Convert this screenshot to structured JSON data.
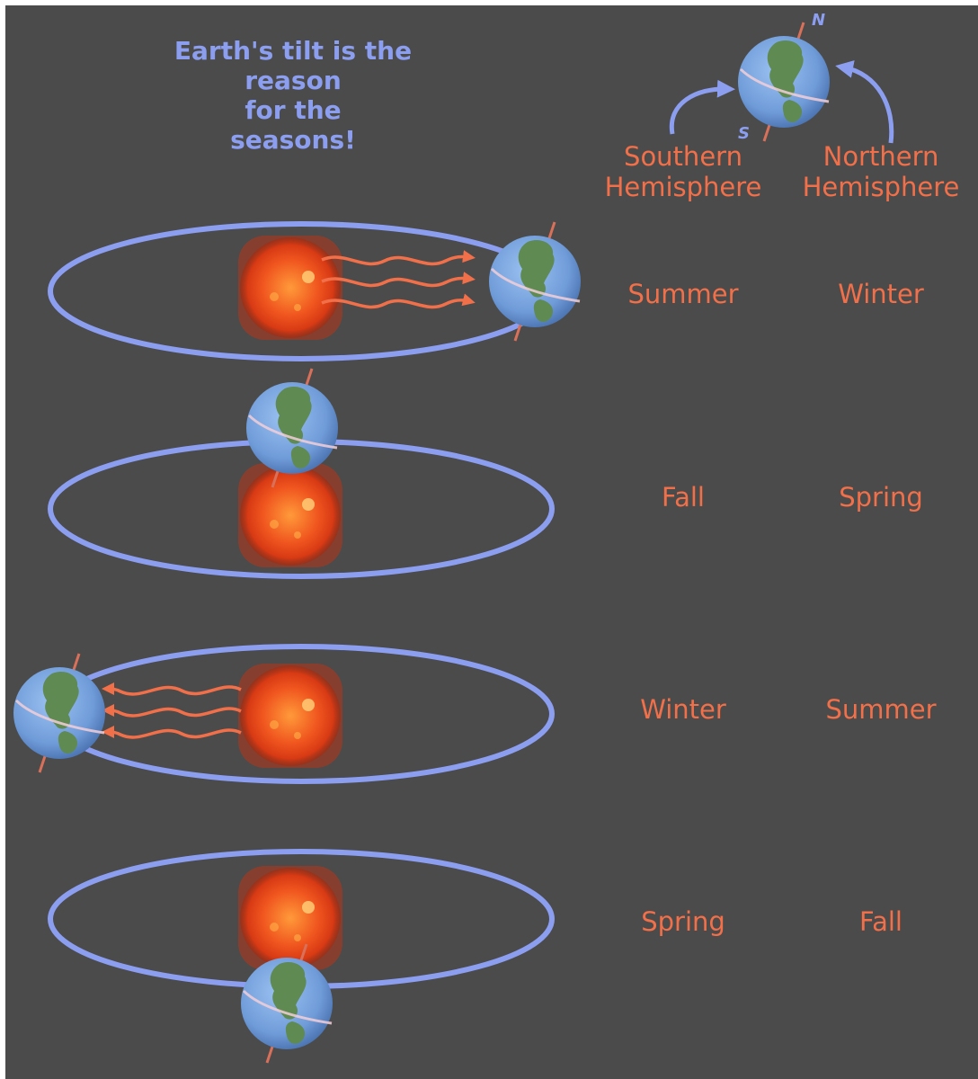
{
  "title_lines": [
    "Earth's tilt is the",
    "reason",
    "for the",
    "seasons!"
  ],
  "globe_labels": {
    "north": "N",
    "south": "S"
  },
  "hemispheres": {
    "southern": [
      "Southern",
      "Hemisphere"
    ],
    "northern": [
      "Northern",
      "Hemisphere"
    ]
  },
  "rows": [
    {
      "southern": "Summer",
      "northern": "Winter"
    },
    {
      "southern": "Fall",
      "northern": "Spring"
    },
    {
      "southern": "Winter",
      "northern": "Summer"
    },
    {
      "southern": "Spring",
      "northern": "Fall"
    }
  ],
  "colors": {
    "background": "#4b4b4b",
    "orbit": "#8c9ef0",
    "label_text": "#f1704a",
    "title_text": "#8c9ef0",
    "sun": "#e8441c",
    "ocean": "#6f9bd8",
    "land": "#5f8a52"
  },
  "icons": [
    "sun-icon",
    "earth-icon",
    "sunlight-ray-icon",
    "curved-arrow-icon"
  ]
}
